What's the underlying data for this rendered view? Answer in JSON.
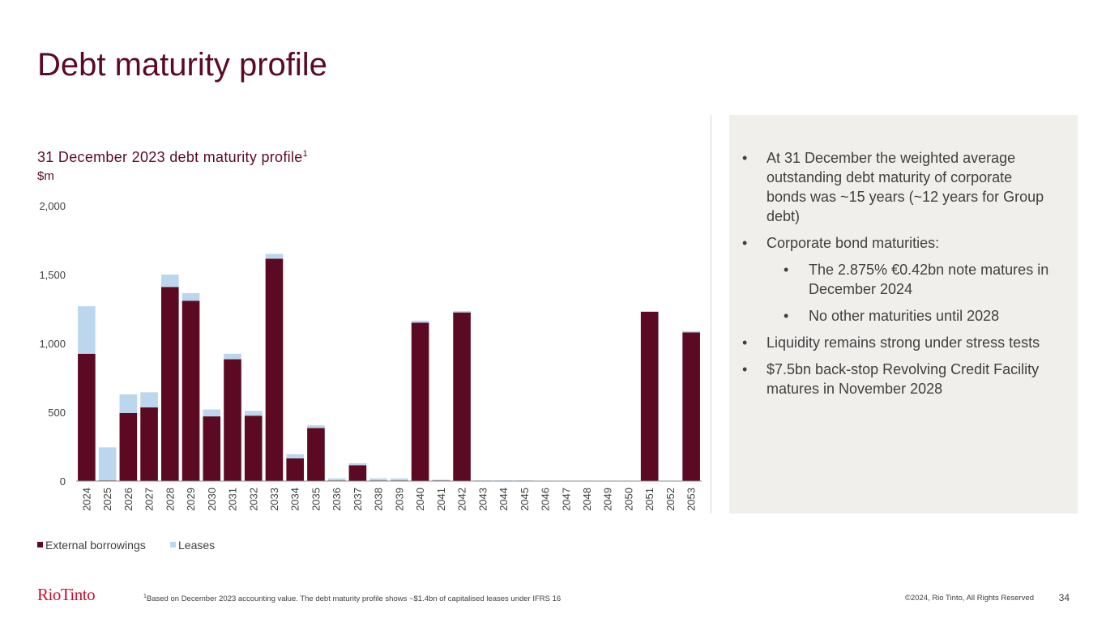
{
  "title": "Debt maturity profile",
  "chart_title": "31 December 2023 debt maturity profile",
  "chart_title_sup": "1",
  "chart_unit": "$m",
  "bullets": [
    {
      "level": 1,
      "text": "At 31 December the weighted average outstanding debt maturity of corporate bonds was ~15 years (~12 years for Group debt)"
    },
    {
      "level": 1,
      "text": "Corporate bond maturities:"
    },
    {
      "level": 2,
      "text": "The 2.875% €0.42bn note matures in December 2024"
    },
    {
      "level": 2,
      "text": "No other maturities until 2028"
    },
    {
      "level": 1,
      "text": "Liquidity remains strong under stress tests"
    },
    {
      "level": 1,
      "text": "$7.5bn back-stop Revolving Credit Facility matures in November 2028"
    }
  ],
  "bullet_symbol": "•",
  "logo": "RioTinto",
  "footnote": {
    "sup": "1",
    "text": "Based on December 2023 accounting value. The debt maturity profile shows ~$1.4bn of capitalised leases under IFRS 16"
  },
  "copyright": "©2024, Rio Tinto, All Rights Reserved",
  "page_number": "34",
  "chart_data": {
    "type": "bar",
    "stacked": true,
    "categories": [
      "2024",
      "2025",
      "2026",
      "2027",
      "2028",
      "2029",
      "2030",
      "2031",
      "2032",
      "2033",
      "2034",
      "2035",
      "2036",
      "2037",
      "2038",
      "2039",
      "2040",
      "2041",
      "2042",
      "2043",
      "2044",
      "2045",
      "2046",
      "2047",
      "2048",
      "2049",
      "2050",
      "2051",
      "2052",
      "2053"
    ],
    "series": [
      {
        "name": "External borrowings",
        "color": "#5c0a23",
        "values": [
          925,
          5,
          495,
          535,
          1410,
          1310,
          470,
          885,
          475,
          1615,
          165,
          385,
          5,
          115,
          5,
          5,
          1150,
          5,
          1225,
          0,
          0,
          0,
          0,
          0,
          0,
          0,
          0,
          1230,
          0,
          1080
        ]
      },
      {
        "name": "Leases",
        "color": "#bcd7ed",
        "values": [
          345,
          240,
          135,
          110,
          90,
          55,
          50,
          40,
          35,
          35,
          30,
          20,
          15,
          15,
          15,
          15,
          15,
          5,
          10,
          5,
          5,
          5,
          3,
          3,
          3,
          3,
          3,
          3,
          3,
          10
        ]
      }
    ],
    "yticks": [
      0,
      500,
      1000,
      1500,
      2000
    ],
    "ytick_labels": [
      "0",
      "500",
      "1,000",
      "1,500",
      "2,000"
    ],
    "ylim": [
      0,
      2000
    ],
    "grid": false,
    "legend_position": "bottom-left"
  }
}
